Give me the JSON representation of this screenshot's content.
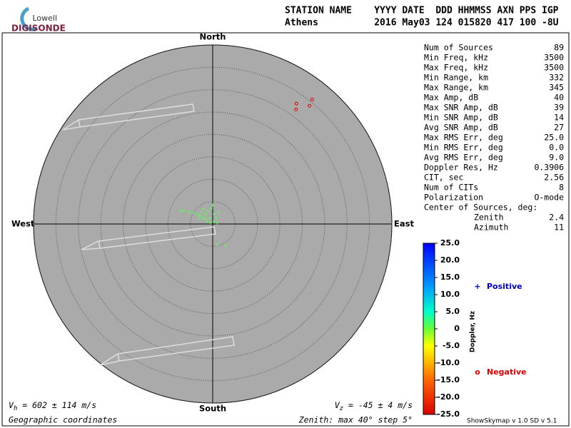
{
  "header": {
    "logo_top": "Lowell",
    "logo_bottom": "DIGISONDE",
    "line1": "STATION NAME    YYYY DATE  DDD HHMMSS AXN PPS IGP",
    "line2": "Athens          2016 May03 124 015820 417 100 -8U"
  },
  "chart_data": {
    "type": "skymap",
    "directions": {
      "north": "North",
      "south": "South",
      "west": "West",
      "east": "East"
    },
    "xlim": [
      -40,
      40
    ],
    "ylim": [
      -40,
      40
    ],
    "rticks": [
      5,
      10,
      15,
      20,
      25,
      30,
      35,
      40
    ],
    "series": [
      {
        "name": "Negative",
        "symbol": "o",
        "color": "#e00000",
        "x": [
          18.7,
          22.2,
          21.6,
          18.6
        ],
        "values": [
          26.9,
          27.8,
          26.4,
          25.6
        ]
      },
      {
        "name": "Positive",
        "symbol": "+",
        "color": "#0000cc",
        "x": [
          -7.2,
          -6.4,
          -5.3,
          -4.5,
          -3.7,
          -2.9,
          -2.2,
          -1.6,
          -1.0,
          -0.3,
          0.0,
          0.3,
          0.8,
          1.3,
          -1.3,
          -0.5,
          -2.4,
          -1.8,
          -0.6,
          0.3,
          -3.0,
          -2.1,
          1.0,
          1.1,
          2.9
        ],
        "values": [
          3.0,
          2.9,
          2.7,
          2.6,
          2.2,
          1.9,
          1.4,
          2.2,
          2.9,
          3.5,
          4.2,
          2.2,
          1.4,
          2.6,
          0.6,
          0.3,
          2.6,
          1.3,
          1.3,
          0.6,
          1.3,
          3.4,
          0.2,
          -4.6,
          -4.8
        ],
        "point_color": "#66ee66"
      }
    ],
    "colorbar": {
      "title": "Doppler, Hz",
      "lim": [
        -25,
        25
      ],
      "ticks": [
        {
          "value": 25,
          "label": "25.0"
        },
        {
          "value": 20,
          "label": "20.0"
        },
        {
          "value": 15,
          "label": "15.0"
        },
        {
          "value": 10,
          "label": "10.0"
        },
        {
          "value": 5,
          "label": "5.0"
        },
        0,
        {
          "value": -5,
          "label": "-5.0"
        },
        {
          "value": -10,
          "label": "-10.0"
        },
        {
          "value": -15,
          "label": "-15.0"
        },
        {
          "value": -20,
          "label": "-20.0"
        },
        {
          "value": -25,
          "label": "-25.0"
        }
      ]
    },
    "vh": {
      "symbol": "V",
      "sub": "h",
      "text": " = 602 ± 114 m/s"
    },
    "vz": {
      "symbol": "V",
      "sub": "z",
      "text": " = -45 ± 4 m/s"
    },
    "coords": "Geographic coordinates",
    "zenith_note": "Zenith: max 40°  step 5°"
  },
  "stats": {
    "rows": [
      [
        "Num of Sources",
        "89"
      ],
      [
        "Min Freq, kHz",
        "3500"
      ],
      [
        "Max Freq, kHz",
        "3500"
      ],
      [
        "Min Range, km",
        "332"
      ],
      [
        "Max Range, km",
        "345"
      ],
      [
        "Max Amp, dB",
        "40"
      ],
      [
        "Max SNR Amp, dB",
        "39"
      ],
      [
        "Min SNR Amp, dB",
        "14"
      ],
      [
        "Avg SNR Amp, dB",
        "27"
      ],
      [
        "Max RMS Err, deg",
        "25.0"
      ],
      [
        "Min RMS Err, deg",
        "0.0"
      ],
      [
        "Avg RMS Err, deg",
        "9.0"
      ],
      [
        "Doppler Res, Hz",
        "0.3906"
      ],
      [
        "CIT, sec",
        "2.56"
      ],
      [
        "Num of CITs",
        "8"
      ],
      [
        "Polarization",
        "O-mode"
      ]
    ],
    "center_title": "Center of Sources, deg:",
    "center_rows": [
      [
        "Zenith",
        "2.4"
      ],
      [
        "Azimuth",
        "11"
      ]
    ]
  },
  "footer": "ShowSkymap v 1.0   SD v 5.1"
}
